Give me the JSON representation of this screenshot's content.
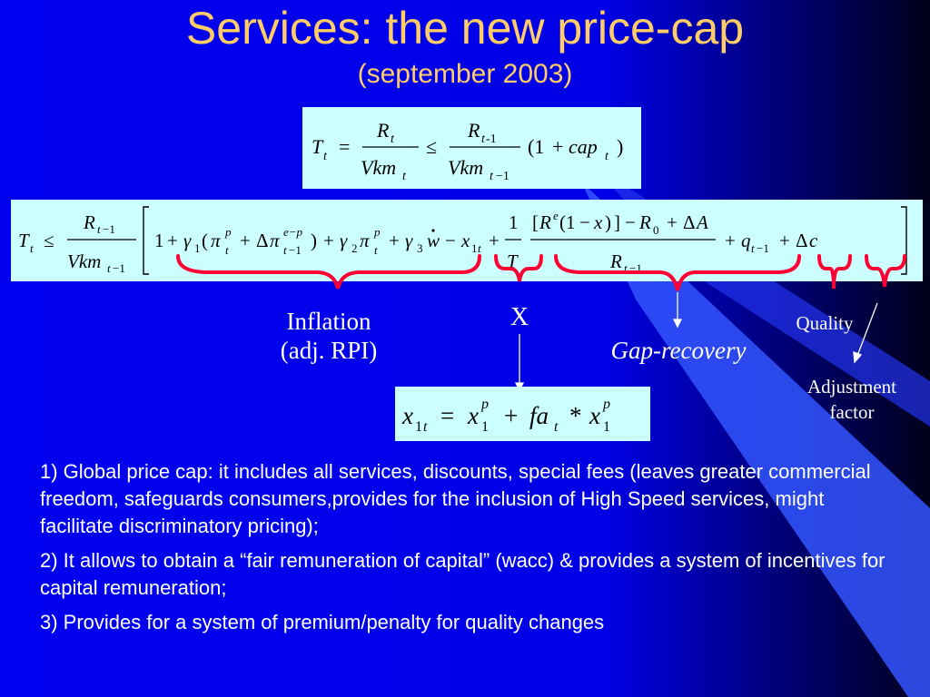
{
  "slide": {
    "title": "Services: the new price-cap",
    "subtitle": "(september 2003)"
  },
  "labels": {
    "inflation_line1": "Inflation",
    "inflation_line2": "(adj. RPI)",
    "x": "X",
    "gap_recovery": "Gap-recovery",
    "quality": "Quality",
    "adjustment_line1": "Adjustment",
    "adjustment_line2": "factor"
  },
  "bullets": [
    "1) Global price cap: it includes all services, discounts, special fees (leaves greater commercial freedom, safeguards consumers,provides for the inclusion of High Speed services, might facilitate discriminatory pricing);",
    "2) It allows to obtain a “fair remuneration of capital” (wacc) & provides a system of incentives for capital remuneration;",
    "3) Provides for a system of premium/penalty for quality changes"
  ],
  "colors": {
    "background": "#0000f0",
    "title": "#ffcc66",
    "formula_box": "#ccffff",
    "brace": "#ff0033",
    "text": "#ffffff"
  }
}
